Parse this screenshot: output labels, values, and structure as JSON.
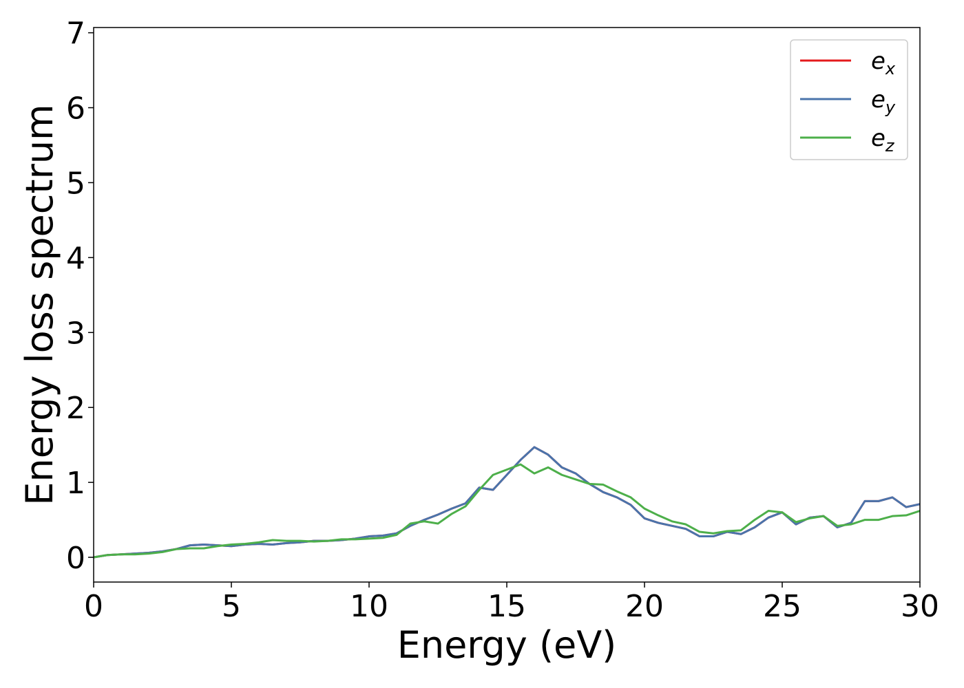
{
  "chart_data": {
    "type": "line",
    "xlabel": "Energy (eV)",
    "ylabel": "Energy loss spectrum",
    "x": [
      0,
      0.5,
      1,
      1.5,
      2,
      2.5,
      3,
      3.5,
      4,
      4.5,
      5,
      5.5,
      6,
      6.5,
      7,
      7.5,
      8,
      8.5,
      9,
      9.5,
      10,
      10.5,
      11,
      11.5,
      12,
      12.5,
      13,
      13.5,
      14,
      14.5,
      15,
      15.5,
      16,
      16.5,
      17,
      17.5,
      18,
      18.5,
      19,
      19.5,
      20,
      20.5,
      21,
      21.5,
      22,
      22.5,
      23,
      23.5,
      24,
      24.5,
      25,
      25.5,
      26,
      26.5,
      27,
      27.5,
      28,
      28.5,
      29,
      29.5,
      30
    ],
    "series": [
      {
        "name": "e_x",
        "color": "#e41a1c",
        "values": [
          0,
          0.03,
          0.04,
          0.05,
          0.06,
          0.08,
          0.11,
          0.16,
          0.17,
          0.16,
          0.15,
          0.17,
          0.18,
          0.17,
          0.19,
          0.2,
          0.22,
          0.22,
          0.23,
          0.25,
          0.28,
          0.29,
          0.32,
          0.42,
          0.5,
          0.57,
          0.65,
          0.72,
          0.93,
          0.9,
          1.1,
          1.3,
          1.47,
          1.37,
          1.2,
          1.12,
          0.98,
          0.87,
          0.8,
          0.7,
          0.52,
          0.46,
          0.42,
          0.38,
          0.28,
          0.28,
          0.34,
          0.31,
          0.4,
          0.53,
          0.6,
          0.44,
          0.53,
          0.55,
          0.4,
          0.46,
          0.75,
          0.75,
          0.8,
          0.67,
          0.71
        ]
      },
      {
        "name": "e_y",
        "color": "#4a74ab",
        "values": [
          0,
          0.03,
          0.04,
          0.05,
          0.06,
          0.08,
          0.11,
          0.16,
          0.17,
          0.16,
          0.15,
          0.17,
          0.18,
          0.17,
          0.19,
          0.2,
          0.22,
          0.22,
          0.23,
          0.25,
          0.28,
          0.29,
          0.32,
          0.42,
          0.5,
          0.57,
          0.65,
          0.72,
          0.93,
          0.9,
          1.1,
          1.3,
          1.47,
          1.37,
          1.2,
          1.12,
          0.98,
          0.87,
          0.8,
          0.7,
          0.52,
          0.46,
          0.42,
          0.38,
          0.28,
          0.28,
          0.34,
          0.31,
          0.4,
          0.53,
          0.6,
          0.44,
          0.53,
          0.55,
          0.4,
          0.46,
          0.75,
          0.75,
          0.8,
          0.67,
          0.71
        ]
      },
      {
        "name": "e_z",
        "color": "#4daf4a",
        "values": [
          0,
          0.03,
          0.04,
          0.04,
          0.05,
          0.07,
          0.11,
          0.12,
          0.12,
          0.15,
          0.17,
          0.18,
          0.2,
          0.23,
          0.22,
          0.22,
          0.21,
          0.22,
          0.24,
          0.24,
          0.25,
          0.26,
          0.3,
          0.45,
          0.48,
          0.45,
          0.58,
          0.68,
          0.9,
          1.1,
          1.17,
          1.24,
          1.12,
          1.2,
          1.1,
          1.04,
          0.98,
          0.97,
          0.88,
          0.8,
          0.65,
          0.56,
          0.48,
          0.44,
          0.34,
          0.32,
          0.35,
          0.36,
          0.5,
          0.62,
          0.6,
          0.47,
          0.52,
          0.55,
          0.42,
          0.44,
          0.5,
          0.5,
          0.55,
          0.56,
          0.62
        ]
      }
    ],
    "xlim": [
      0,
      30
    ],
    "ylim": [
      -0.33,
      7.07
    ],
    "xticks": [
      0,
      5,
      10,
      15,
      20,
      25,
      30
    ],
    "yticks": [
      0,
      1,
      2,
      3,
      4,
      5,
      6,
      7
    ],
    "grid": false,
    "legend": "upper right"
  }
}
